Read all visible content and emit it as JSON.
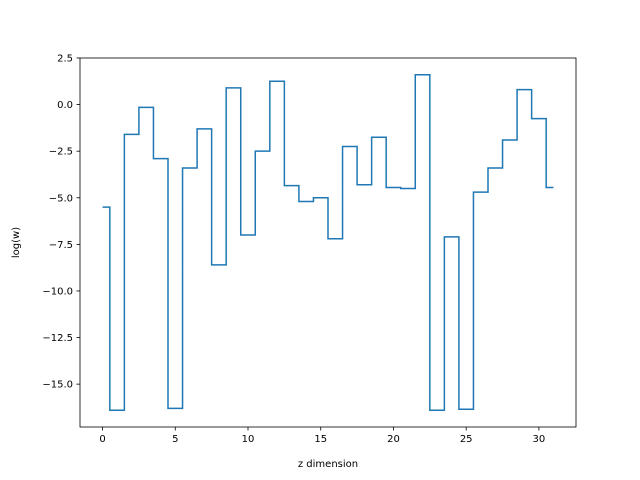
{
  "chart_data": {
    "type": "line",
    "drawstyle": "steps-mid",
    "xlabel": "z dimension",
    "ylabel": "log(w)",
    "xlim": [
      -1.55,
      32.55
    ],
    "ylim": [
      -17.3,
      2.5
    ],
    "xticks": [
      0,
      5,
      10,
      15,
      20,
      25,
      30
    ],
    "yticks": [
      2.5,
      0.0,
      -2.5,
      -5.0,
      -7.5,
      -10.0,
      -12.5,
      -15.0
    ],
    "ytick_labels": [
      "2.5",
      "0.0",
      "−2.5",
      "−5.0",
      "−7.5",
      "−10.0",
      "−12.5",
      "−15.0"
    ],
    "grid": false,
    "series": [
      {
        "color": "#1f77b4",
        "x": [
          0,
          1,
          2,
          3,
          4,
          5,
          6,
          7,
          8,
          9,
          10,
          11,
          12,
          13,
          14,
          15,
          16,
          17,
          18,
          19,
          20,
          21,
          22,
          23,
          24,
          25,
          26,
          27,
          28,
          29,
          30,
          31
        ],
        "values": [
          -5.5,
          -16.4,
          -1.6,
          -0.15,
          -2.9,
          -16.3,
          -3.4,
          -1.3,
          -8.6,
          0.9,
          -7.0,
          -2.5,
          1.25,
          -4.35,
          -5.2,
          -5.0,
          -7.2,
          -2.25,
          -4.3,
          -1.75,
          -4.45,
          -4.5,
          1.6,
          -16.4,
          -7.1,
          -16.35,
          -4.7,
          -3.4,
          -1.9,
          0.8,
          -0.75,
          -4.45
        ]
      }
    ]
  }
}
